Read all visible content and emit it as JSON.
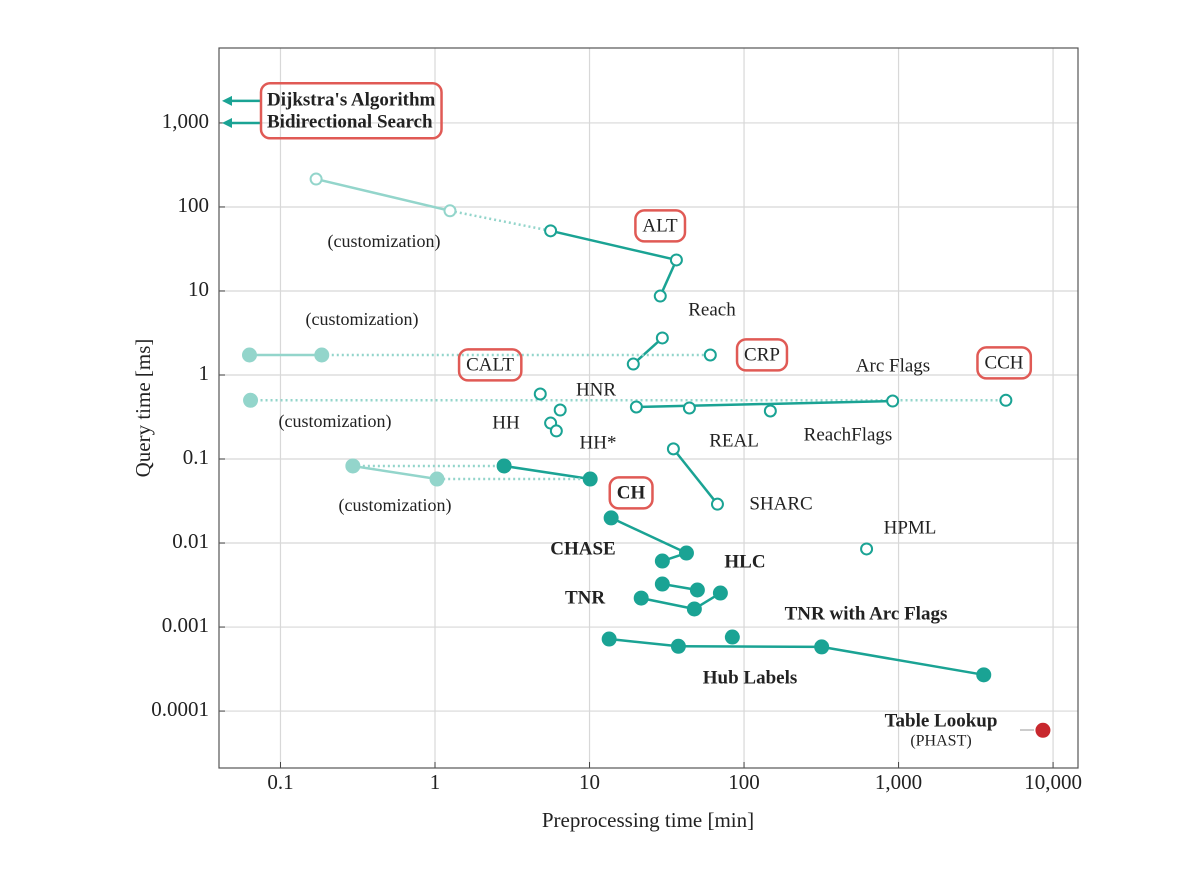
{
  "chart_data": {
    "type": "scatter",
    "log_x": true,
    "log_y": true,
    "grid": true,
    "x_label": "Preprocessing time [min]",
    "y_label": "Query time [ms]",
    "xlim": [
      0.04,
      14500
    ],
    "ylim": [
      2.1e-05,
      7800
    ],
    "xticks": [
      0.1,
      1,
      10,
      100,
      {
        "value": 1000,
        "label": "1,000"
      },
      {
        "value": 10000,
        "label": "10,000"
      }
    ],
    "yticks": [
      0.0001,
      0.001,
      0.01,
      0.1,
      1,
      10,
      100,
      {
        "value": 1000,
        "label": "1,000"
      }
    ],
    "color": "#1aa394",
    "light_color": "#93d5cb",
    "box_color": "#e05a55",
    "series": [
      {
        "name": "ALT",
        "x": [
          0.17,
          1.25,
          5.6,
          36.5,
          28.7
        ],
        "y": [
          215,
          90,
          52,
          23.4,
          8.7
        ],
        "light": [
          true,
          true,
          false,
          false,
          false
        ],
        "filled": false,
        "segments": [
          "solid",
          "dotted",
          "solid",
          "solid"
        ],
        "boxed": true
      },
      {
        "name": "Reach",
        "x": [
          29.6,
          19.2
        ],
        "y": [
          2.76,
          1.35
        ],
        "filled": false,
        "segments": [
          "solid"
        ]
      },
      {
        "name": "CRP",
        "x": [
          0.063,
          0.185,
          60.5
        ],
        "y": [
          1.73,
          1.73,
          1.73
        ],
        "light": [
          true,
          true,
          false
        ],
        "filled": [
          true,
          true,
          false
        ],
        "segments": [
          "solid",
          "dotted"
        ],
        "boxed": true
      },
      {
        "name": "CCH",
        "x": [
          0.064,
          4950
        ],
        "y": [
          0.5,
          0.5
        ],
        "light": [
          true,
          false
        ],
        "filled": [
          true,
          false
        ],
        "segments": [
          "dotted"
        ],
        "boxed": true
      },
      {
        "name": "Arc Flags",
        "x": [
          20.1,
          916
        ],
        "y": [
          0.416,
          0.49
        ],
        "filled": false,
        "segments": [
          "solid"
        ]
      },
      {
        "name": "REAL",
        "x": [
          44.3
        ],
        "y": [
          0.405
        ],
        "filled": false
      },
      {
        "name": "ReachFlags",
        "x": [
          148
        ],
        "y": [
          0.373
        ],
        "filled": false
      },
      {
        "name": "CALT",
        "x": [
          4.8
        ],
        "y": [
          0.594
        ],
        "filled": false,
        "boxed": true
      },
      {
        "name": "HNR",
        "x": [
          6.46
        ],
        "y": [
          0.383
        ],
        "filled": false
      },
      {
        "name": "HH",
        "x": [
          5.6
        ],
        "y": [
          0.268
        ],
        "filled": false
      },
      {
        "name": "HH*",
        "x": [
          6.1
        ],
        "y": [
          0.216
        ],
        "filled": false
      },
      {
        "name": "SHARC",
        "x": [
          34.9,
          67.3
        ],
        "y": [
          0.132,
          0.029
        ],
        "filled": false,
        "segments": [
          "solid"
        ]
      },
      {
        "name": "CH",
        "x": [
          2.8,
          10.1,
          1.03,
          0.294
        ],
        "y": [
          0.0826,
          0.0578,
          0.0578,
          0.0826
        ],
        "light": [
          false,
          false,
          true,
          true
        ],
        "filled": true,
        "segments": [
          "solid",
          "dotted",
          "solid",
          "dotted"
        ],
        "closed": true,
        "boxed": true,
        "bold": true
      },
      {
        "name": "HPML",
        "x": [
          621
        ],
        "y": [
          0.0085
        ],
        "filled": false
      },
      {
        "name": "CHASE",
        "x": [
          13.8,
          42.4,
          29.6
        ],
        "y": [
          0.0199,
          0.0076,
          0.0061
        ],
        "filled": true,
        "segments": [
          "solid",
          "solid"
        ],
        "bold": true
      },
      {
        "name": "HLC",
        "x": [
          29.6,
          49.9
        ],
        "y": [
          0.00325,
          0.00276
        ],
        "filled": true,
        "segments": [
          "solid"
        ],
        "bold": true
      },
      {
        "name": "TNR",
        "x": [
          21.6,
          47.7,
          70.3
        ],
        "y": [
          0.00221,
          0.00164,
          0.00254
        ],
        "filled": true,
        "segments": [
          "solid",
          "solid"
        ],
        "bold": true
      },
      {
        "name": "TNR with Arc Flags",
        "x": [
          84
        ],
        "y": [
          0.00076
        ],
        "filled": true,
        "bold": true
      },
      {
        "name": "Hub Labels",
        "x": [
          13.4,
          37.6,
          318,
          3560
        ],
        "y": [
          0.00072,
          0.00059,
          0.00058,
          0.00027
        ],
        "filled": true,
        "segments": [
          "solid",
          "solid",
          "solid"
        ],
        "bold": true
      },
      {
        "name": "Table Lookup",
        "subtitle": "(PHAST)",
        "x": [
          8600
        ],
        "y": [
          5.9e-05
        ],
        "filled": true,
        "color": "#c8282e",
        "bold": true
      }
    ],
    "arrows": [
      {
        "name": "Dijkstra's Algorithm",
        "y": 1830
      },
      {
        "name": "Bidirectional Search",
        "y": 1000
      }
    ],
    "annotations": [
      "(customization)",
      "(customization)",
      "(customization)",
      "(customization)"
    ]
  }
}
